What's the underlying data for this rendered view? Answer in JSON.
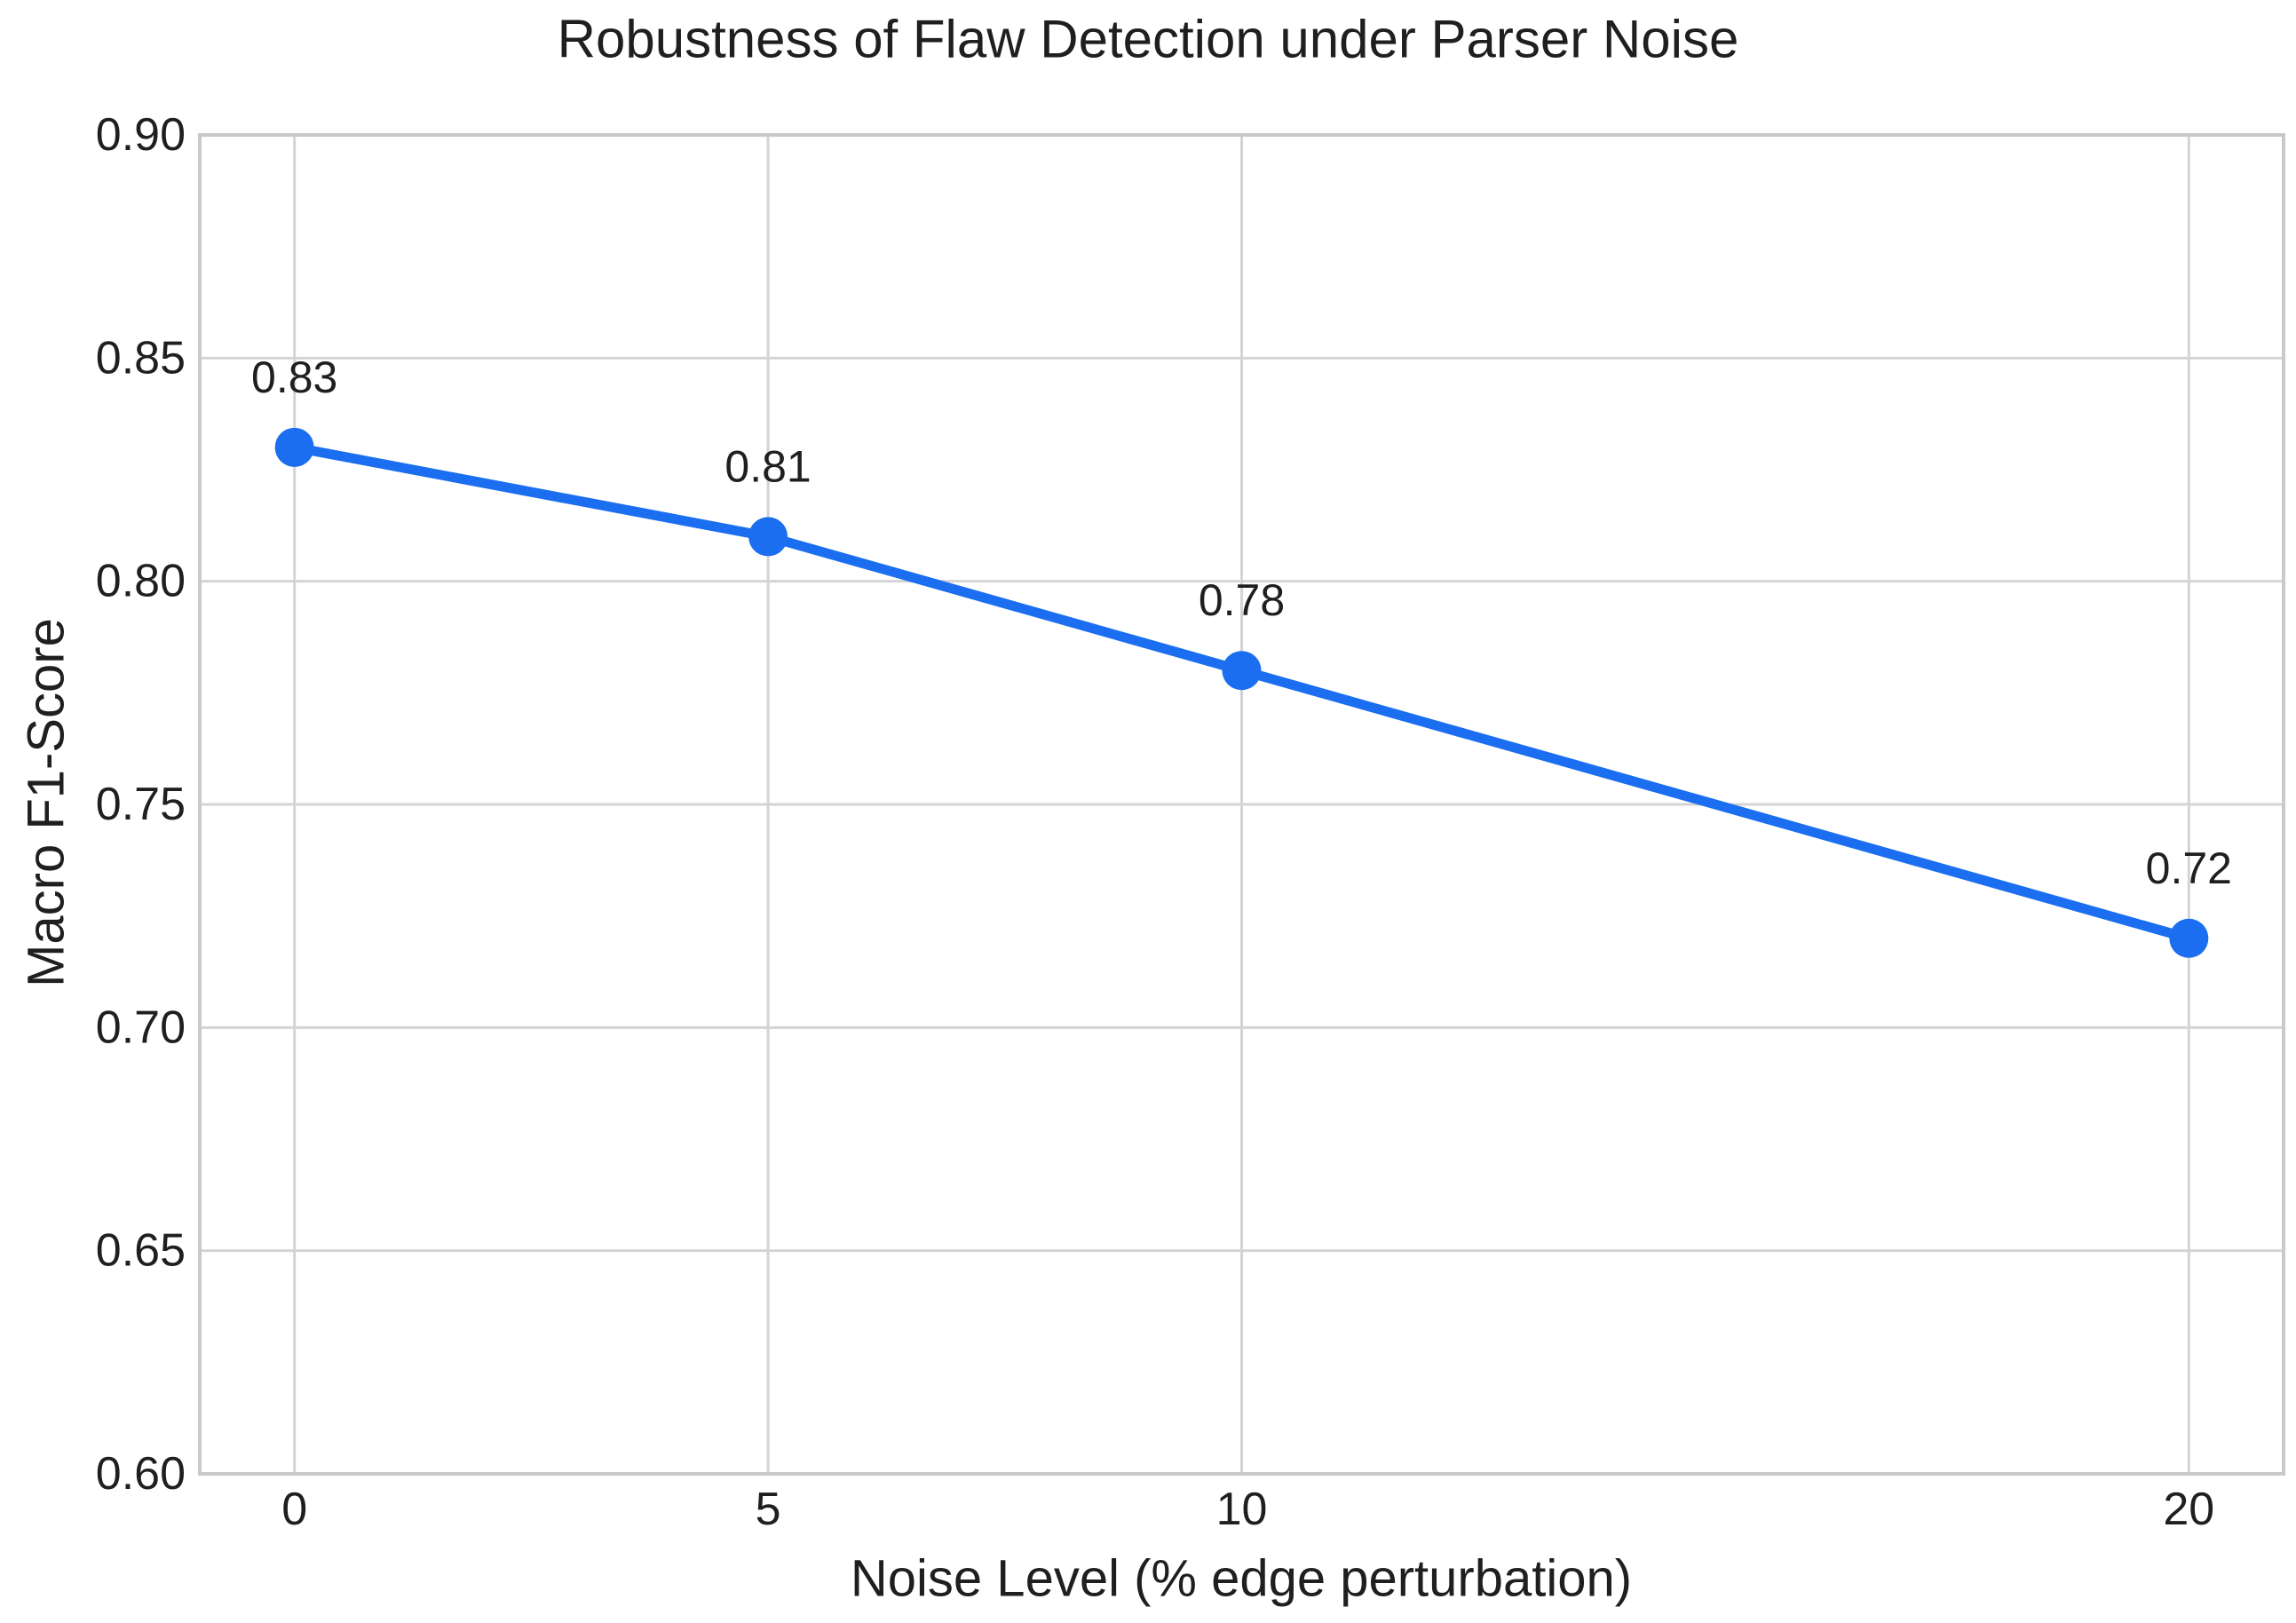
{
  "figure": {
    "title": "Robustness of Flaw Detection under Parser Noise"
  },
  "chart_data": {
    "type": "line",
    "title": "Robustness of Flaw Detection under Parser Noise",
    "xlabel": "Noise Level (% edge perturbation)",
    "ylabel": "Macro F1-Score",
    "x": [
      0,
      5,
      10,
      20
    ],
    "y": [
      0.83,
      0.81,
      0.78,
      0.72
    ],
    "series": [
      {
        "name": "Macro F1-Score",
        "x": [
          0,
          5,
          10,
          20
        ],
        "values": [
          0.83,
          0.81,
          0.78,
          0.72
        ]
      }
    ],
    "point_labels": [
      "0.83",
      "0.81",
      "0.78",
      "0.72"
    ],
    "x_ticks": [
      0,
      5,
      10,
      20
    ],
    "x_tick_labels": [
      "0",
      "5",
      "10",
      "20"
    ],
    "y_ticks": [
      0.6,
      0.65,
      0.7,
      0.75,
      0.8,
      0.85,
      0.9
    ],
    "y_tick_labels": [
      "0.60",
      "0.65",
      "0.70",
      "0.75",
      "0.80",
      "0.85",
      "0.90"
    ],
    "xlim": [
      -1,
      21
    ],
    "ylim": [
      0.6,
      0.9
    ],
    "grid": true,
    "legend_position": "none",
    "colors": {
      "line": "#1b6ef0",
      "marker": "#1b6ef0",
      "grid": "#d4d4d4",
      "spine": "#c9c9c9",
      "text": "#1f1f1f",
      "background": "#ffffff"
    }
  }
}
